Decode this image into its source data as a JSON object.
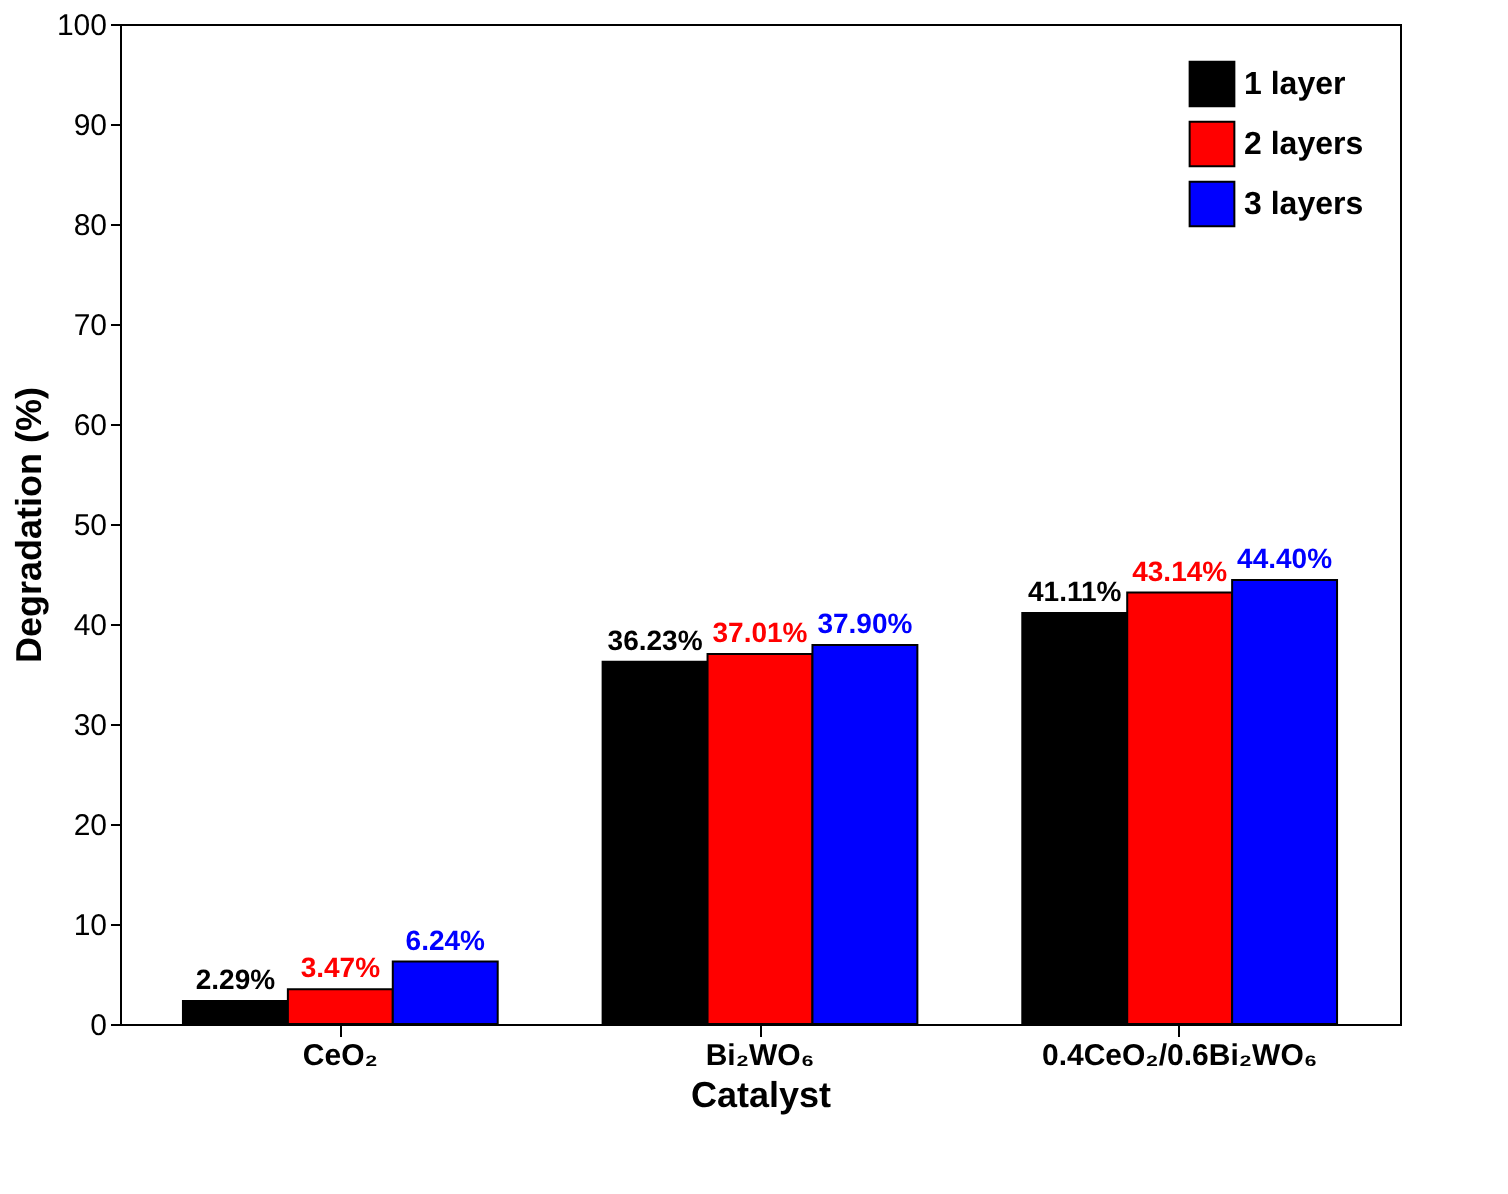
{
  "chart_data": {
    "type": "bar",
    "xlabel": "Catalyst",
    "ylabel": "Degradation (%)",
    "categories": [
      "CeO₂",
      "Bi₂WO₆",
      "0.4CeO₂/0.6Bi₂WO₆"
    ],
    "series": [
      {
        "name": "1 layer",
        "color": "#000000",
        "values": [
          2.29,
          36.23,
          41.11
        ],
        "value_labels": [
          "2.29%",
          "36.23%",
          "41.11%"
        ]
      },
      {
        "name": "2 layers",
        "color": "#ff0000",
        "values": [
          3.47,
          37.01,
          43.14
        ],
        "value_labels": [
          "3.47%",
          "37.01%",
          "43.14%"
        ]
      },
      {
        "name": "3 layers",
        "color": "#0000ff",
        "values": [
          6.24,
          37.9,
          44.4
        ],
        "value_labels": [
          "6.24%",
          "37.90%",
          "44.40%"
        ]
      }
    ],
    "ylim": [
      0,
      100
    ],
    "yticks": [
      0,
      10,
      20,
      30,
      40,
      50,
      60,
      70,
      80,
      90,
      100
    ],
    "grid": false,
    "legend": "top right"
  }
}
